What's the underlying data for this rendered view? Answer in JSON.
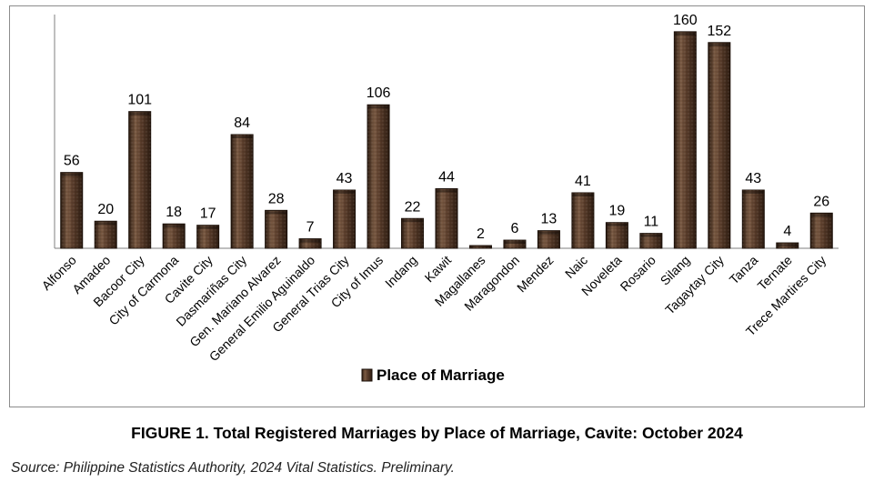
{
  "figure": {
    "title": "FIGURE 1. Total Registered Marriages by Place of Marriage, Cavite: October 2024",
    "source": "Source: Philippine Statistics Authority, 2024 Vital Statistics. Preliminary."
  },
  "chart_data": {
    "type": "bar",
    "title": "",
    "xlabel": "",
    "ylabel": "",
    "ylim": [
      0,
      170
    ],
    "grid": false,
    "legend_position": "bottom",
    "bar_color": "#5a3d2b",
    "bar_color_dark": "#2e1d12",
    "bar_color_light": "#8a6a52",
    "categories": [
      "Alfonso",
      "Amadeo",
      "Bacoor City",
      "City of Carmona",
      "Cavite City",
      "Dasmariñas City",
      "Gen. Mariano Alvarez",
      "General Emilio Aguinaldo",
      "General Trias City",
      "City of Imus",
      "Indang",
      "Kawit",
      "Magallanes",
      "Maragondon",
      "Mendez",
      "Naic",
      "Noveleta",
      "Rosario",
      "Silang",
      "Tagaytay City",
      "Tanza",
      "Ternate",
      "Trece Martires City"
    ],
    "series": [
      {
        "name": "Place of Marriage",
        "values": [
          56,
          20,
          101,
          18,
          17,
          84,
          28,
          7,
          43,
          106,
          22,
          44,
          2,
          6,
          13,
          41,
          19,
          11,
          160,
          152,
          43,
          4,
          26
        ]
      }
    ]
  }
}
